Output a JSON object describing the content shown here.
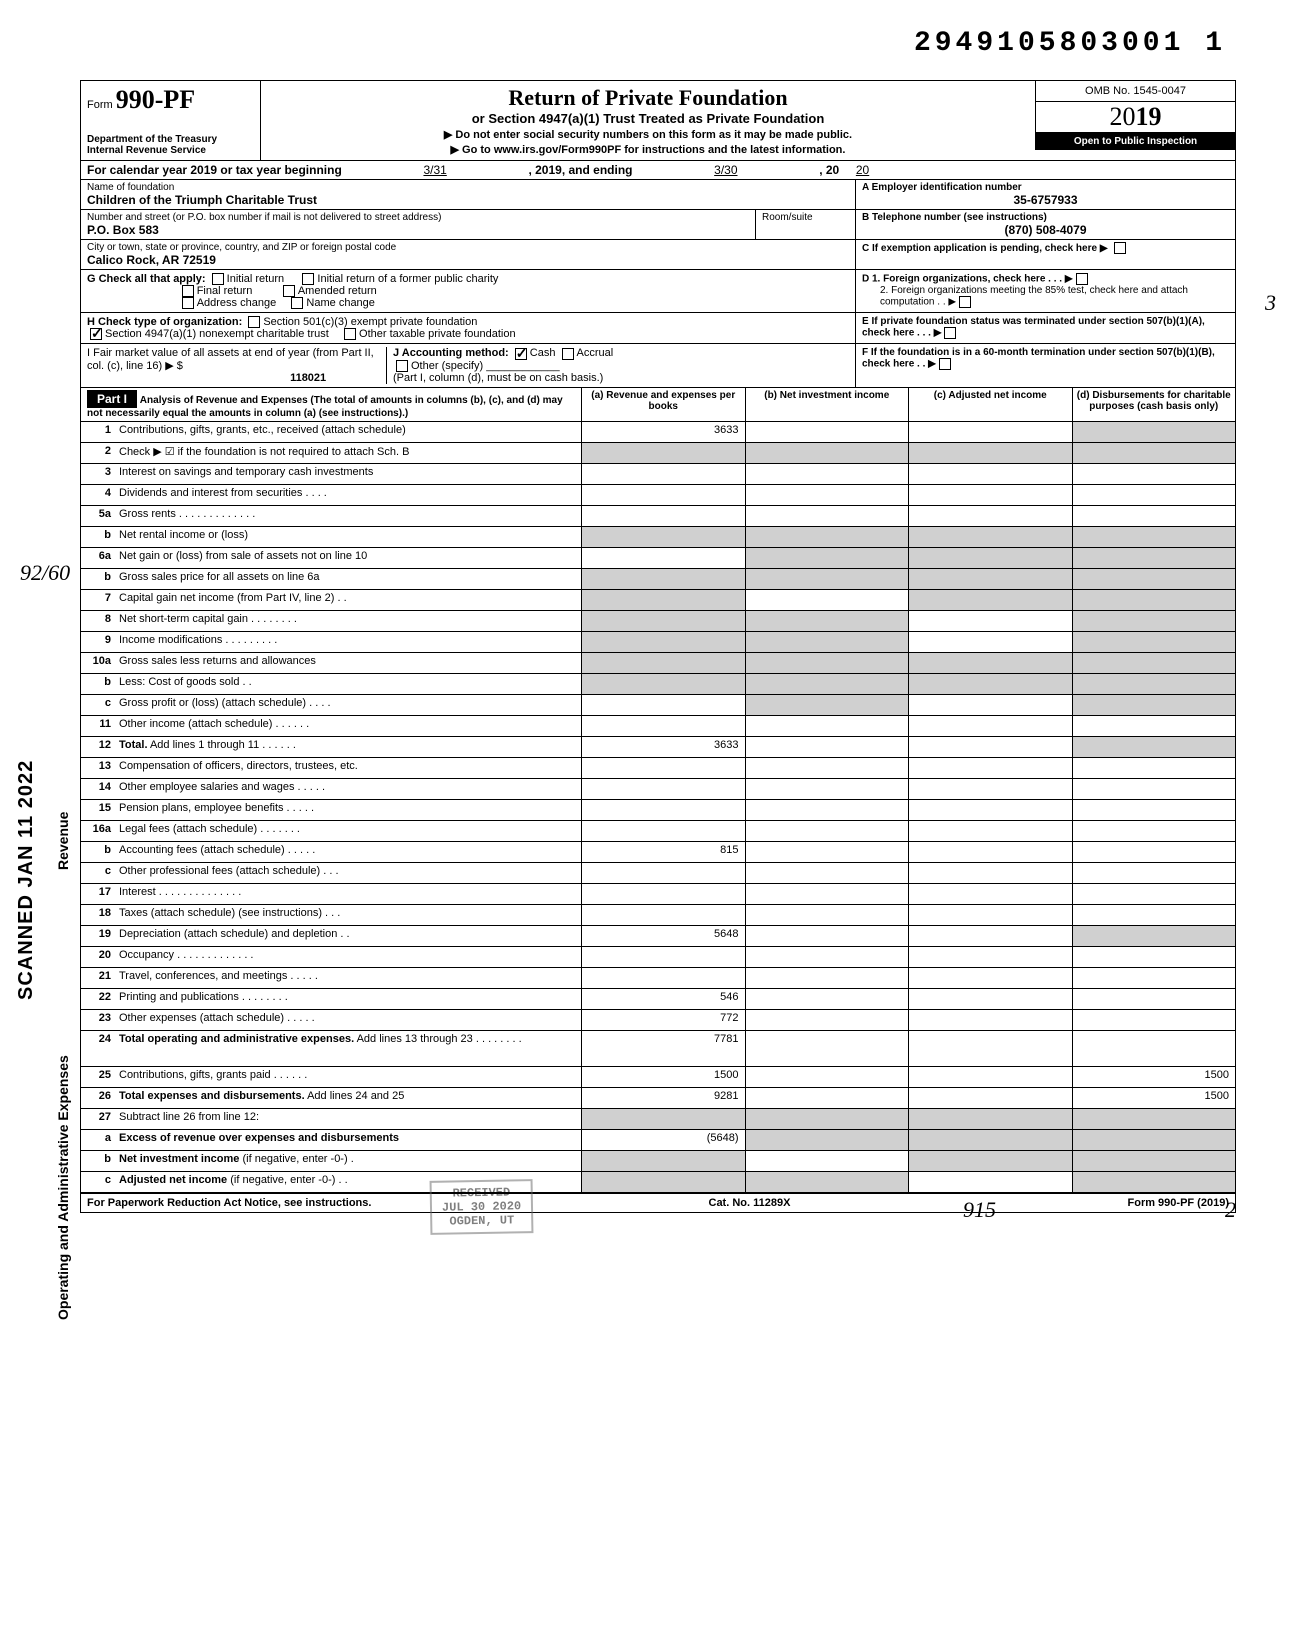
{
  "stamp_number": "2949105803001 1",
  "form": {
    "prefix": "Form",
    "number": "990-PF",
    "dept": "Department of the Treasury\nInternal Revenue Service",
    "title": "Return of Private Foundation",
    "subtitle": "or Section 4947(a)(1) Trust Treated as Private Foundation",
    "warn1": "▶ Do not enter social security numbers on this form as it may be made public.",
    "warn2": "▶ Go to www.irs.gov/Form990PF for instructions and the latest information.",
    "omb": "OMB No. 1545-0047",
    "year_prefix": "20",
    "year_bold": "19",
    "inspect": "Open to Public Inspection"
  },
  "cal": {
    "text1": "For calendar year 2019 or tax year beginning",
    "begin": "3/31",
    "text2": ", 2019, and ending",
    "end": "3/30",
    "text3": ", 20",
    "end_yr": "20"
  },
  "name_block": {
    "name_label": "Name of foundation",
    "name": "Children of the Triumph Charitable Trust",
    "addr_label": "Number and street (or P.O. box number if mail is not delivered to street address)",
    "addr": "P.O. Box 583",
    "room_label": "Room/suite",
    "city_label": "City or town, state or province, country, and ZIP or foreign postal code",
    "city": "Calico Rock, AR 72519"
  },
  "right_block": {
    "A_label": "A  Employer identification number",
    "A_val": "35-6757933",
    "B_label": "B  Telephone number (see instructions)",
    "B_val": "(870) 508-4079",
    "C_label": "C  If exemption application is pending, check here ▶",
    "D1": "D  1. Foreign organizations, check here . . . ▶",
    "D2": "2. Foreign organizations meeting the 85% test, check here and attach computation  . . ▶",
    "E": "E  If private foundation status was terminated under section 507(b)(1)(A), check here . . . ▶",
    "F": "F  If the foundation is in a 60-month termination under section 507(b)(1)(B), check here . . ▶"
  },
  "G": {
    "label": "G  Check all that apply:",
    "opts": [
      "Initial return",
      "Final return",
      "Address change",
      "Initial return of a former public charity",
      "Amended return",
      "Name change"
    ]
  },
  "H": {
    "label": "H  Check type of organization:",
    "opts": [
      "Section 501(c)(3) exempt private foundation",
      "Section 4947(a)(1) nonexempt charitable trust",
      "Other taxable private foundation"
    ],
    "checked": 1
  },
  "I": {
    "text1": "I   Fair market value of all assets at end of year  (from Part II, col. (c), line 16) ▶ $",
    "val": "118021",
    "J_label": "J  Accounting method:",
    "J_opts": [
      "Cash",
      "Accrual",
      "Other (specify)"
    ],
    "J_note": "(Part I, column (d), must be on cash basis.)"
  },
  "part1": {
    "label": "Part I",
    "head": "Analysis of Revenue and Expenses (The total of amounts in columns (b), (c), and (d) may not necessarily equal the amounts in column (a) (see instructions).)",
    "cols": [
      "(a) Revenue and expenses per books",
      "(b) Net investment income",
      "(c) Adjusted net income",
      "(d) Disbursements for charitable purposes (cash basis only)"
    ]
  },
  "side": {
    "revenue": "Revenue",
    "expenses": "Operating and Administrative Expenses"
  },
  "scanned": "SCANNED JAN 11 2022",
  "lines": [
    {
      "n": "1",
      "d": "Contributions, gifts, grants, etc., received (attach schedule)",
      "a": "3633",
      "shade": [
        3
      ]
    },
    {
      "n": "2",
      "d": "Check ▶ ☑ if the foundation is not required to attach Sch. B",
      "shade": [
        0,
        1,
        2,
        3
      ]
    },
    {
      "n": "3",
      "d": "Interest on savings and temporary cash investments"
    },
    {
      "n": "4",
      "d": "Dividends and interest from securities . . . ."
    },
    {
      "n": "5a",
      "d": "Gross rents . . . . . . . . . . . . ."
    },
    {
      "n": "b",
      "d": "Net rental income or (loss)",
      "sub": true,
      "shade": [
        0,
        1,
        2,
        3
      ]
    },
    {
      "n": "6a",
      "d": "Net gain or (loss) from sale of assets not on line 10",
      "shade": [
        1,
        2,
        3
      ]
    },
    {
      "n": "b",
      "d": "Gross sales price for all assets on line 6a",
      "sub": true,
      "shade": [
        0,
        1,
        2,
        3
      ]
    },
    {
      "n": "7",
      "d": "Capital gain net income (from Part IV, line 2) . .",
      "shade": [
        0,
        2,
        3
      ]
    },
    {
      "n": "8",
      "d": "Net short-term capital gain . . . . . . . .",
      "shade": [
        0,
        1,
        3
      ]
    },
    {
      "n": "9",
      "d": "Income modifications   . . . . . . . . .",
      "shade": [
        0,
        1,
        3
      ]
    },
    {
      "n": "10a",
      "d": "Gross sales less returns and allowances",
      "sub": true,
      "shade": [
        0,
        1,
        2,
        3
      ]
    },
    {
      "n": "b",
      "d": "Less: Cost of goods sold  . .",
      "sub": true,
      "shade": [
        0,
        1,
        2,
        3
      ]
    },
    {
      "n": "c",
      "d": "Gross profit or (loss) (attach schedule) . . . .",
      "shade": [
        1,
        3
      ]
    },
    {
      "n": "11",
      "d": "Other income (attach schedule) . . . . . ."
    },
    {
      "n": "12",
      "d": "<b>Total.</b> Add lines 1 through 11 . . . . . .",
      "a": "3633",
      "shade": [
        3
      ]
    },
    {
      "n": "13",
      "d": "Compensation of officers, directors, trustees, etc."
    },
    {
      "n": "14",
      "d": "Other employee salaries and wages . . . . ."
    },
    {
      "n": "15",
      "d": "Pension plans, employee benefits  . . . . ."
    },
    {
      "n": "16a",
      "d": "Legal fees (attach schedule)   . . . . . . ."
    },
    {
      "n": "b",
      "d": "Accounting fees (attach schedule)  . . . . .",
      "a": "815"
    },
    {
      "n": "c",
      "d": "Other professional fees (attach schedule) . . ."
    },
    {
      "n": "17",
      "d": "Interest . . . . . . . . . . . . . ."
    },
    {
      "n": "18",
      "d": "Taxes (attach schedule) (see instructions) . . ."
    },
    {
      "n": "19",
      "d": "Depreciation (attach schedule) and depletion . .",
      "a": "5648",
      "shade": [
        3
      ]
    },
    {
      "n": "20",
      "d": "Occupancy . . . . . . . . . . . . ."
    },
    {
      "n": "21",
      "d": "Travel, conferences, and meetings  . . . . ."
    },
    {
      "n": "22",
      "d": "Printing and publications  . . . . . . . .",
      "a": "546"
    },
    {
      "n": "23",
      "d": "Other expenses (attach schedule)  . . . . .",
      "a": "772"
    },
    {
      "n": "24",
      "d": "<b>Total operating and administrative expenses.</b> Add lines 13 through 23 . . . . . . . .",
      "a": "7781",
      "tall": true
    },
    {
      "n": "25",
      "d": "Contributions, gifts, grants paid . . . . . .",
      "a": "1500",
      "dd": "1500"
    },
    {
      "n": "26",
      "d": "<b>Total expenses and disbursements.</b> Add lines 24 and 25",
      "a": "9281",
      "dd": "1500"
    },
    {
      "n": "27",
      "d": "Subtract line 26 from line 12:",
      "shade": [
        0,
        1,
        2,
        3
      ]
    },
    {
      "n": "a",
      "d": "<b>Excess of revenue over expenses and disbursements</b>",
      "a": "(5648)",
      "shade": [
        1,
        2,
        3
      ]
    },
    {
      "n": "b",
      "d": "<b>Net investment income</b> (if negative, enter -0-) .",
      "shade": [
        0,
        2,
        3
      ]
    },
    {
      "n": "c",
      "d": "<b>Adjusted net income</b> (if negative, enter -0-) . .",
      "shade": [
        0,
        1,
        3
      ]
    }
  ],
  "footer": {
    "left": "For Paperwork Reduction Act Notice, see instructions.",
    "mid": "Cat. No. 11289X",
    "right": "Form 990-PF (2019)"
  },
  "received": {
    "l1": "RECEIVED",
    "l2": "JUL 30 2020",
    "l3": "OGDEN, UT"
  },
  "hand": {
    "h1": "92/60",
    "h2": "915",
    "h3": "2",
    "h4": "3"
  }
}
